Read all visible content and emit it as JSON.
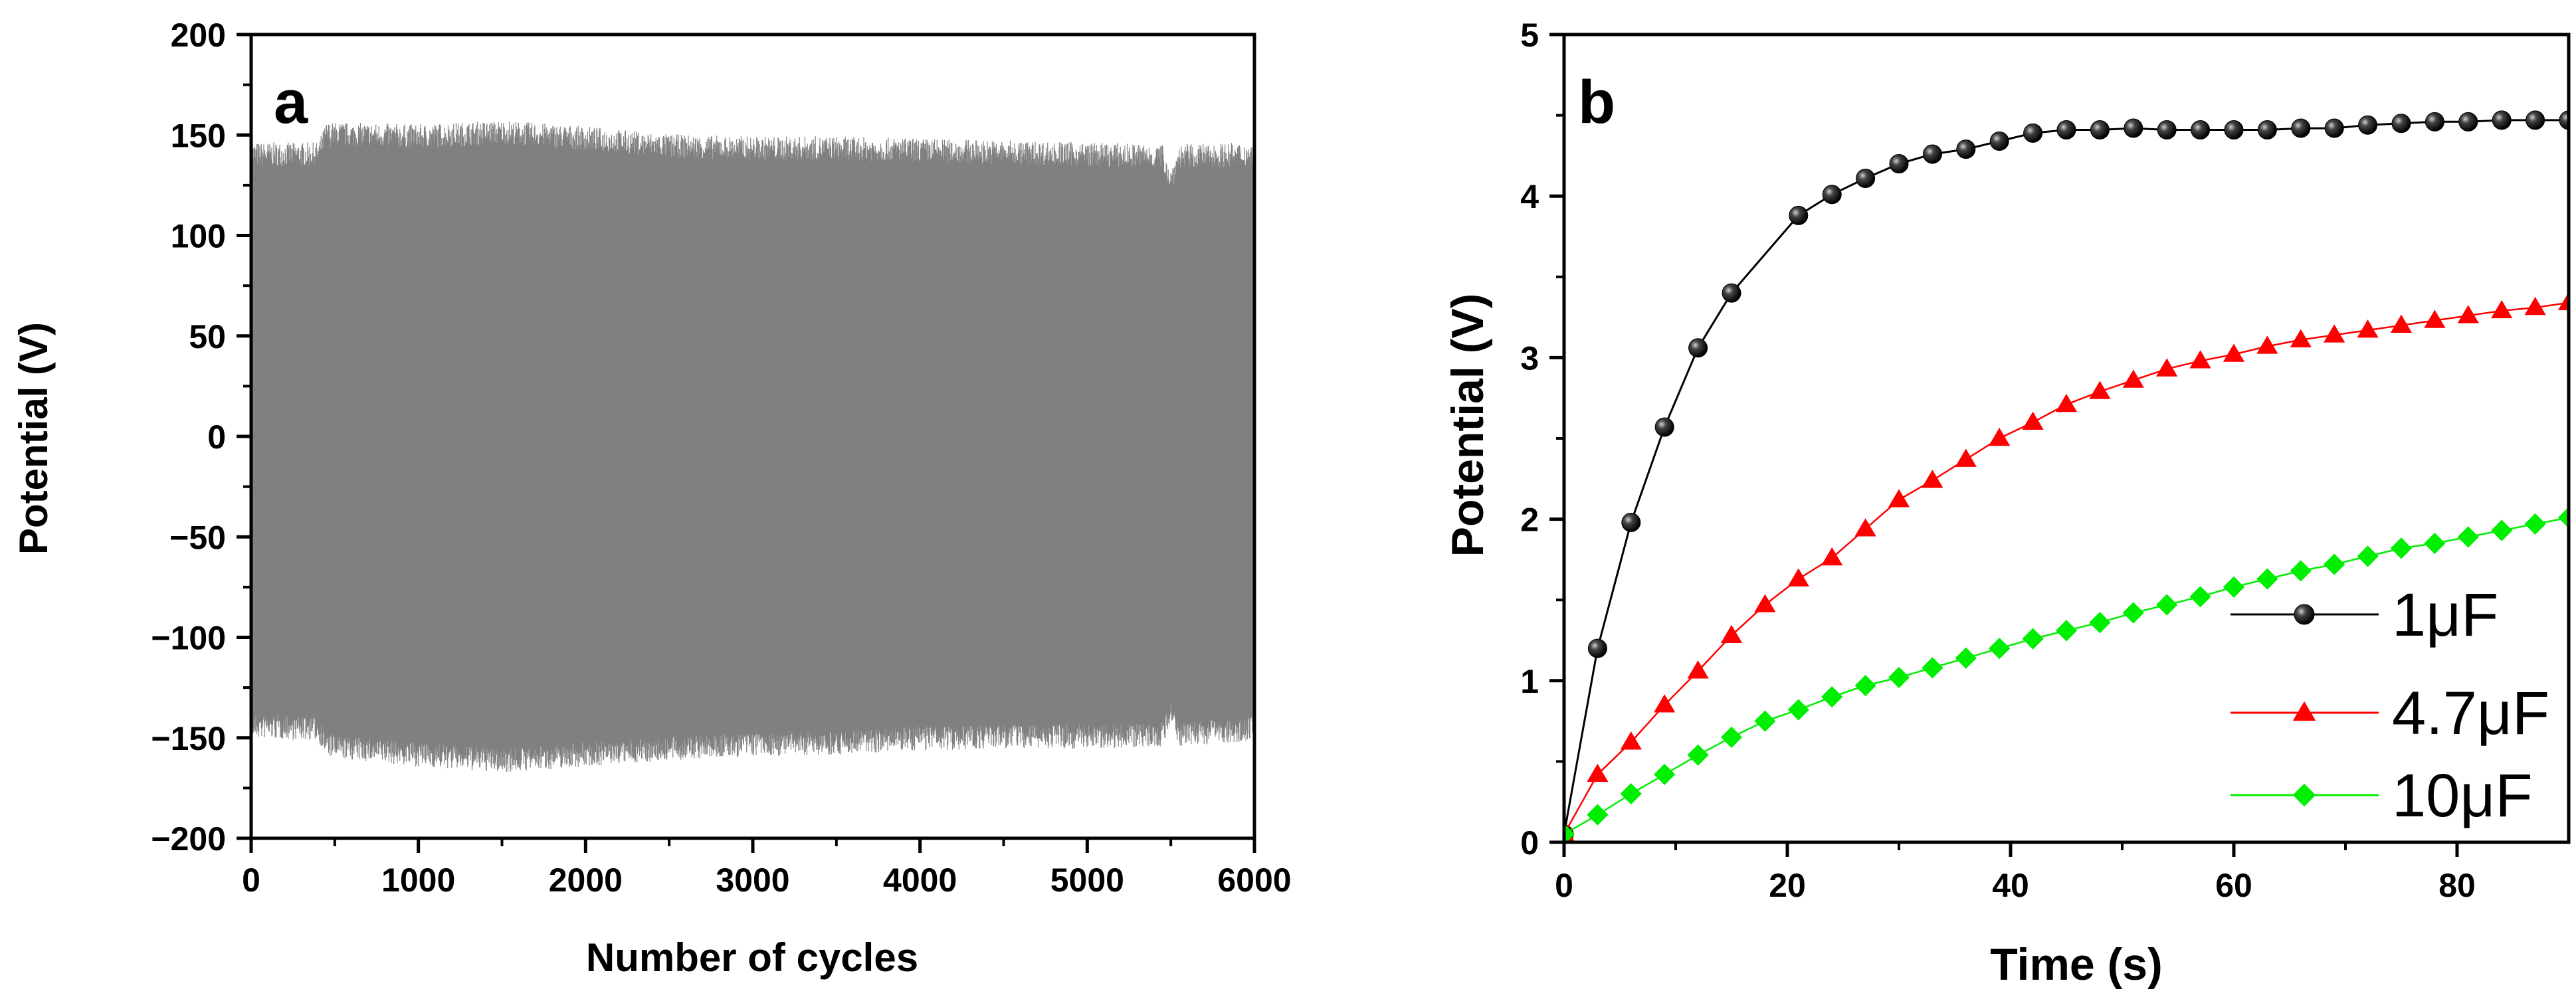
{
  "chart_data": [
    {
      "type": "area",
      "panel_label": "a",
      "xlabel": "Number of cycles",
      "ylabel": "Potential (V)",
      "xlim": [
        0,
        6000
      ],
      "ylim": [
        -200,
        200
      ],
      "xticks": [
        0,
        1000,
        2000,
        3000,
        4000,
        5000,
        6000
      ],
      "yticks": [
        200,
        150,
        100,
        50,
        0,
        -50,
        -100,
        -150,
        -200
      ],
      "ytick_labels": [
        "200",
        "150",
        "100",
        "50",
        "0",
        "−50",
        "−100",
        "−150",
        "−200"
      ],
      "grid": false,
      "series": [
        {
          "color": "#808080",
          "envelope_x": [
            0,
            400,
            450,
            500,
            1000,
            1500,
            2000,
            2500,
            3000,
            3500,
            4000,
            4500,
            5000,
            5450,
            5500,
            5550,
            6000
          ],
          "upper": [
            138,
            138,
            148,
            148,
            147,
            149,
            146,
            142,
            141,
            141,
            140,
            139,
            138,
            137,
            125,
            137,
            138
          ],
          "lower": [
            -142,
            -143,
            -151,
            -152,
            -156,
            -159,
            -156,
            -153,
            -151,
            -150,
            -148,
            -147,
            -147,
            -146,
            -135,
            -146,
            -143
          ]
        }
      ]
    },
    {
      "type": "line",
      "panel_label": "b",
      "xlabel": "Time (s)",
      "ylabel": "Potential (V)",
      "xlim": [
        0,
        90
      ],
      "ylim": [
        0,
        5
      ],
      "xticks": [
        0,
        20,
        40,
        60,
        80
      ],
      "yticks": [
        0,
        1,
        2,
        3,
        4,
        5
      ],
      "grid": false,
      "legend_position": "bottom-right",
      "series": [
        {
          "name": "1μF",
          "color": "#000000",
          "marker": "sphere",
          "x": [
            0,
            3,
            6,
            9,
            12,
            15,
            21,
            24,
            27,
            30,
            33,
            36,
            39,
            42,
            45,
            48,
            51,
            54,
            57,
            60,
            63,
            66,
            69,
            72,
            75,
            78,
            81,
            84,
            87,
            90
          ],
          "y": [
            0.05,
            1.2,
            1.98,
            2.57,
            3.06,
            3.4,
            3.88,
            4.01,
            4.11,
            4.2,
            4.26,
            4.29,
            4.34,
            4.39,
            4.41,
            4.41,
            4.42,
            4.41,
            4.41,
            4.41,
            4.41,
            4.42,
            4.42,
            4.44,
            4.45,
            4.46,
            4.46,
            4.47,
            4.47,
            4.47
          ]
        },
        {
          "name": "4.7μF",
          "color": "#ff0000",
          "marker": "triangle",
          "x": [
            0,
            3,
            6,
            9,
            12,
            15,
            18,
            21,
            24,
            27,
            30,
            33,
            36,
            39,
            42,
            45,
            48,
            51,
            54,
            57,
            60,
            63,
            66,
            69,
            72,
            75,
            78,
            81,
            84,
            87,
            90
          ],
          "y": [
            0.05,
            0.42,
            0.62,
            0.85,
            1.06,
            1.28,
            1.47,
            1.63,
            1.76,
            1.94,
            2.12,
            2.24,
            2.37,
            2.5,
            2.6,
            2.71,
            2.79,
            2.86,
            2.93,
            2.98,
            3.02,
            3.07,
            3.11,
            3.14,
            3.17,
            3.2,
            3.23,
            3.26,
            3.29,
            3.31,
            3.34
          ]
        },
        {
          "name": "10μF",
          "color": "#00ee00",
          "marker": "diamond",
          "x": [
            0,
            3,
            6,
            9,
            12,
            15,
            18,
            21,
            24,
            27,
            30,
            33,
            36,
            39,
            42,
            45,
            48,
            51,
            54,
            57,
            60,
            63,
            66,
            69,
            72,
            75,
            78,
            81,
            84,
            87,
            90
          ],
          "y": [
            0.05,
            0.17,
            0.3,
            0.42,
            0.54,
            0.65,
            0.75,
            0.82,
            0.9,
            0.97,
            1.02,
            1.08,
            1.14,
            1.2,
            1.26,
            1.31,
            1.36,
            1.42,
            1.47,
            1.52,
            1.58,
            1.63,
            1.68,
            1.72,
            1.77,
            1.82,
            1.85,
            1.89,
            1.93,
            1.97,
            2.01
          ]
        }
      ]
    }
  ]
}
